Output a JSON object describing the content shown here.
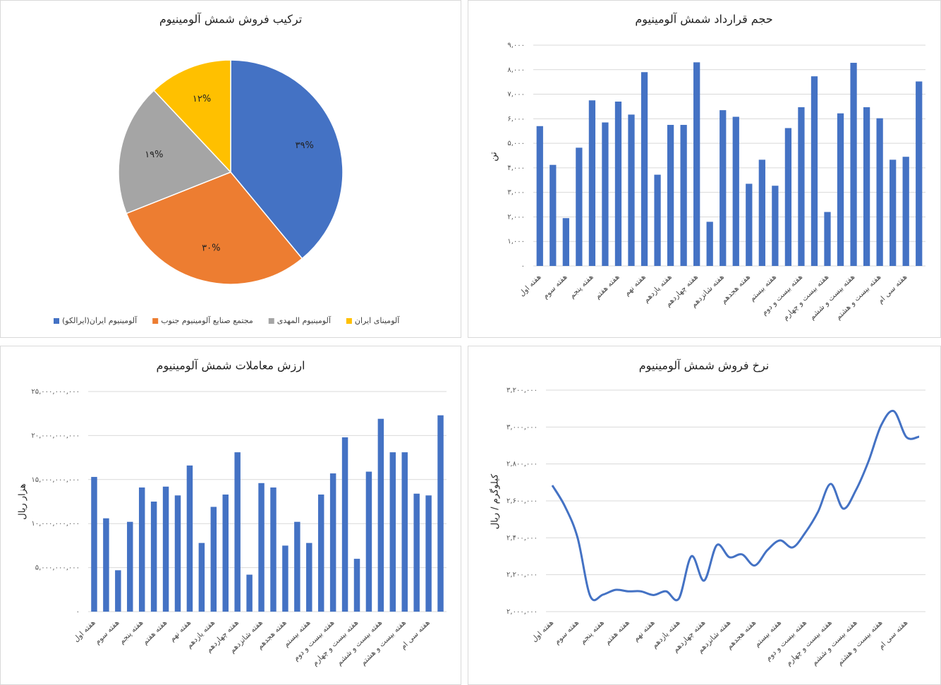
{
  "chart_data": [
    {
      "type": "pie",
      "title": "ترکیب فروش شمش آلومینیوم",
      "categories": [
        "آلومینیوم ایران(ایرالکو)",
        "مجتمع صنایع آلومینیوم جنوب",
        "آلومینیوم المهدی",
        "آلومینای ایران"
      ],
      "values": [
        39,
        30,
        19,
        12
      ],
      "value_labels": [
        "۳۹%",
        "۳۰%",
        "۱۹%",
        "۱۲%"
      ],
      "colors": [
        "#4472c4",
        "#ed7d31",
        "#a5a5a5",
        "#ffc000"
      ],
      "legend": "bottom"
    },
    {
      "type": "bar",
      "title": "حجم قرارداد شمش آلومینیوم",
      "y_label": "تن",
      "categories": [
        "هفته اول",
        null,
        "هفته سوم",
        null,
        "هفته پنجم",
        null,
        "هفته هفتم",
        null,
        "هفته نهم",
        null,
        "هفته یازدهم",
        null,
        "هفته چهاردهم",
        null,
        "هفته شانزدهم",
        null,
        "هفته هجدهم",
        null,
        "هفته بیستم",
        null,
        "هفته بیست و دوم",
        null,
        "هفته بیست و چهارم",
        null,
        "هفته بیست و ششم",
        null,
        "هفته بیست و هشتم",
        null,
        "هفته سی ام",
        null
      ],
      "values": [
        5700,
        4120,
        1950,
        4820,
        6750,
        5850,
        6700,
        6170,
        7900,
        3720,
        5750,
        5750,
        8300,
        1800,
        6350,
        6080,
        3350,
        4330,
        3270,
        5620,
        6470,
        7730,
        2200,
        6220,
        8280,
        6470,
        6020,
        4330,
        4450,
        7520
      ],
      "color": "#4472c4",
      "ylim": [
        0,
        9000
      ],
      "yticks": [
        {
          "value": 0,
          "label": "۰"
        },
        {
          "value": 1000,
          "label": "۱,۰۰۰"
        },
        {
          "value": 2000,
          "label": "۲,۰۰۰"
        },
        {
          "value": 3000,
          "label": "۳,۰۰۰"
        },
        {
          "value": 4000,
          "label": "۴,۰۰۰"
        },
        {
          "value": 5000,
          "label": "۵,۰۰۰"
        },
        {
          "value": 6000,
          "label": "۶,۰۰۰"
        },
        {
          "value": 7000,
          "label": "۷,۰۰۰"
        },
        {
          "value": 8000,
          "label": "۸,۰۰۰"
        },
        {
          "value": 9000,
          "label": "۹,۰۰۰"
        }
      ],
      "grid": true
    },
    {
      "type": "bar",
      "title": "ارزش معاملات شمش آلومینیوم",
      "y_label": "هزار ریال",
      "categories": [
        "هفته اول",
        null,
        "هفته سوم",
        null,
        "هفته پنجم",
        null,
        "هفته هفتم",
        null,
        "هفته نهم",
        null,
        "هفته یازدهم",
        null,
        "هفته چهاردهم",
        null,
        "هفته شانزدهم",
        null,
        "هفته هجدهم",
        null,
        "هفته بیستم",
        null,
        "هفته بیست و دوم",
        null,
        "هفته بیست و چهارم",
        null,
        "هفته بیست و ششم",
        null,
        "هفته بیست و هشتم",
        null,
        "هفته سی ام",
        null
      ],
      "values": [
        15300000000,
        10600000000,
        4700000000,
        10200000000,
        14100000000,
        12500000000,
        14200000000,
        13200000000,
        16600000000,
        7800000000,
        11900000000,
        13300000000,
        18100000000,
        4200000000,
        14600000000,
        14100000000,
        7500000000,
        10200000000,
        7800000000,
        13300000000,
        15700000000,
        19800000000,
        6000000000,
        15900000000,
        21900000000,
        18100000000,
        18100000000,
        13400000000,
        13200000000,
        22300000000
      ],
      "color": "#4472c4",
      "ylim": [
        0,
        25000000000
      ],
      "yticks": [
        {
          "value": 0,
          "label": "۰"
        },
        {
          "value": 5000000000,
          "label": "۵,۰۰۰,۰۰۰,۰۰۰"
        },
        {
          "value": 10000000000,
          "label": "۱۰,۰۰۰,۰۰۰,۰۰۰"
        },
        {
          "value": 15000000000,
          "label": "۱۵,۰۰۰,۰۰۰,۰۰۰"
        },
        {
          "value": 20000000000,
          "label": "۲۰,۰۰۰,۰۰۰,۰۰۰"
        },
        {
          "value": 25000000000,
          "label": "۲۵,۰۰۰,۰۰۰,۰۰۰"
        }
      ],
      "grid": true
    },
    {
      "type": "line",
      "title": "نرخ فروش شمش آلومینیوم",
      "y_label": "کیلوگرم / ریال",
      "categories": [
        "هفته اول",
        null,
        "هفته سوم",
        null,
        "هفته پنجم",
        null,
        "هفته هفتم",
        null,
        "هفته نهم",
        null,
        "هفته یازدهم",
        null,
        "هفته چهاردهم",
        null,
        "هفته شانزدهم",
        null,
        "هفته هجدهم",
        null,
        "هفته بیستم",
        null,
        "هفته بیست و دوم",
        null,
        "هفته بیست و چهارم",
        null,
        "هفته بیست و ششم",
        null,
        "هفته بیست و هشتم",
        null,
        "هفته سی ام",
        null
      ],
      "values": [
        2684000,
        2570000,
        2400000,
        2084000,
        2092000,
        2118000,
        2110000,
        2110000,
        2090000,
        2110000,
        2070000,
        2300000,
        2168000,
        2360000,
        2295000,
        2310000,
        2250000,
        2333000,
        2386000,
        2348000,
        2428000,
        2540000,
        2692000,
        2558000,
        2658000,
        2815000,
        3010000,
        3086000,
        2945000,
        2948000
      ],
      "color": "#4472c4",
      "smooth": true,
      "ylim": [
        2000000,
        3200000
      ],
      "yticks": [
        {
          "value": 2000000,
          "label": "۲,۰۰۰,۰۰۰"
        },
        {
          "value": 2200000,
          "label": "۲,۲۰۰,۰۰۰"
        },
        {
          "value": 2400000,
          "label": "۲,۴۰۰,۰۰۰"
        },
        {
          "value": 2600000,
          "label": "۲,۶۰۰,۰۰۰"
        },
        {
          "value": 2800000,
          "label": "۲,۸۰۰,۰۰۰"
        },
        {
          "value": 3000000,
          "label": "۳,۰۰۰,۰۰۰"
        },
        {
          "value": 3200000,
          "label": "۳,۲۰۰,۰۰۰"
        }
      ],
      "grid": true
    }
  ]
}
